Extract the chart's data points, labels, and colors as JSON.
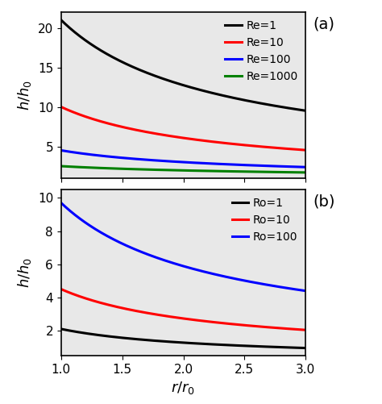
{
  "x_start": 1.0,
  "x_end": 3.0,
  "num_points": 300,
  "panel_a": {
    "curves": [
      {
        "label": "Re=1",
        "color": "black",
        "A": 21.0,
        "exponent": -0.72
      },
      {
        "label": "Re=10",
        "color": "red",
        "A": 10.0,
        "exponent": -0.72
      },
      {
        "label": "Re=100",
        "color": "blue",
        "A": 4.5,
        "exponent": -0.58
      },
      {
        "label": "Re=1000",
        "color": "green",
        "A": 2.5,
        "exponent": -0.35
      }
    ],
    "ylabel": "$h/h_0$",
    "ylim": [
      1.0,
      22.0
    ],
    "yticks": [
      5,
      10,
      15,
      20
    ],
    "label": "(a)"
  },
  "panel_b": {
    "curves": [
      {
        "label": "Ro=1",
        "color": "black",
        "A": 2.1,
        "exponent": -0.72
      },
      {
        "label": "Ro=10",
        "color": "red",
        "A": 4.5,
        "exponent": -0.72
      },
      {
        "label": "Ro=100",
        "color": "blue",
        "A": 9.7,
        "exponent": -0.72
      }
    ],
    "ylabel": "$h/h_0$",
    "ylim": [
      0.5,
      10.5
    ],
    "yticks": [
      2,
      4,
      6,
      8,
      10
    ],
    "label": "(b)"
  },
  "xlabel": "$r/r_0$",
  "xlim": [
    1.0,
    3.0
  ],
  "xticks": [
    1.0,
    1.5,
    2.0,
    2.5,
    3.0
  ],
  "linewidth": 2.2,
  "legend_fontsize": 10,
  "axis_fontsize": 13,
  "tick_fontsize": 11,
  "panel_label_fontsize": 14,
  "bg_color": "#e8e8e8"
}
